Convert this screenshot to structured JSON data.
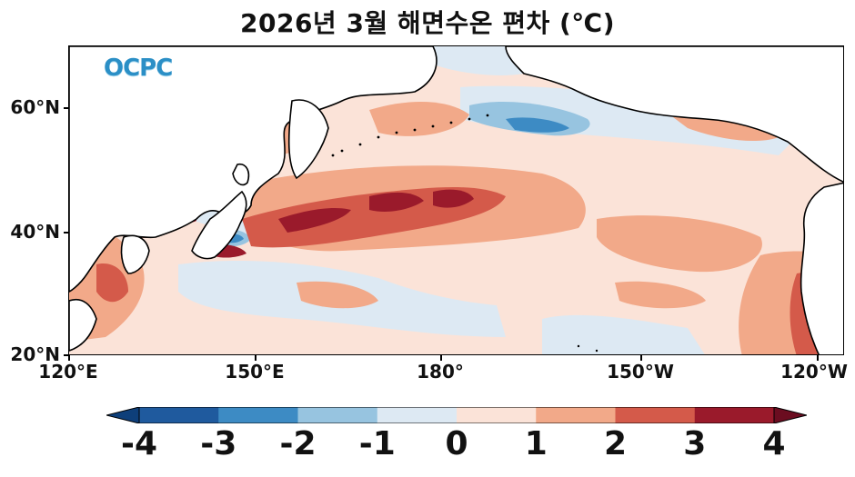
{
  "title": "2026년 3월 해면수온 편차 (℃)",
  "logo": "OCPC",
  "axes": {
    "y_ticks": [
      "60°N",
      "40°N",
      "20°N"
    ],
    "x_ticks": [
      "120°E",
      "150°E",
      "180°",
      "150°W",
      "120°W"
    ]
  },
  "colorbar": {
    "labels": [
      "-4",
      "-3",
      "-2",
      "-1",
      "0",
      "1",
      "2",
      "3",
      "4"
    ],
    "colors": [
      "#1f5a9e",
      "#3d8bc4",
      "#97c4e0",
      "#dde9f3",
      "#fbe3d8",
      "#f2a989",
      "#d45a4a",
      "#9a1a2b"
    ],
    "extend_low_color": "#0e3f7a",
    "extend_high_color": "#6b0d20"
  },
  "map": {
    "land_color": "#ffffff",
    "coast_color": "#000000",
    "lat_range": [
      "20°N",
      "70°N"
    ],
    "lon_range": [
      "120°E",
      "125°W"
    ]
  }
}
